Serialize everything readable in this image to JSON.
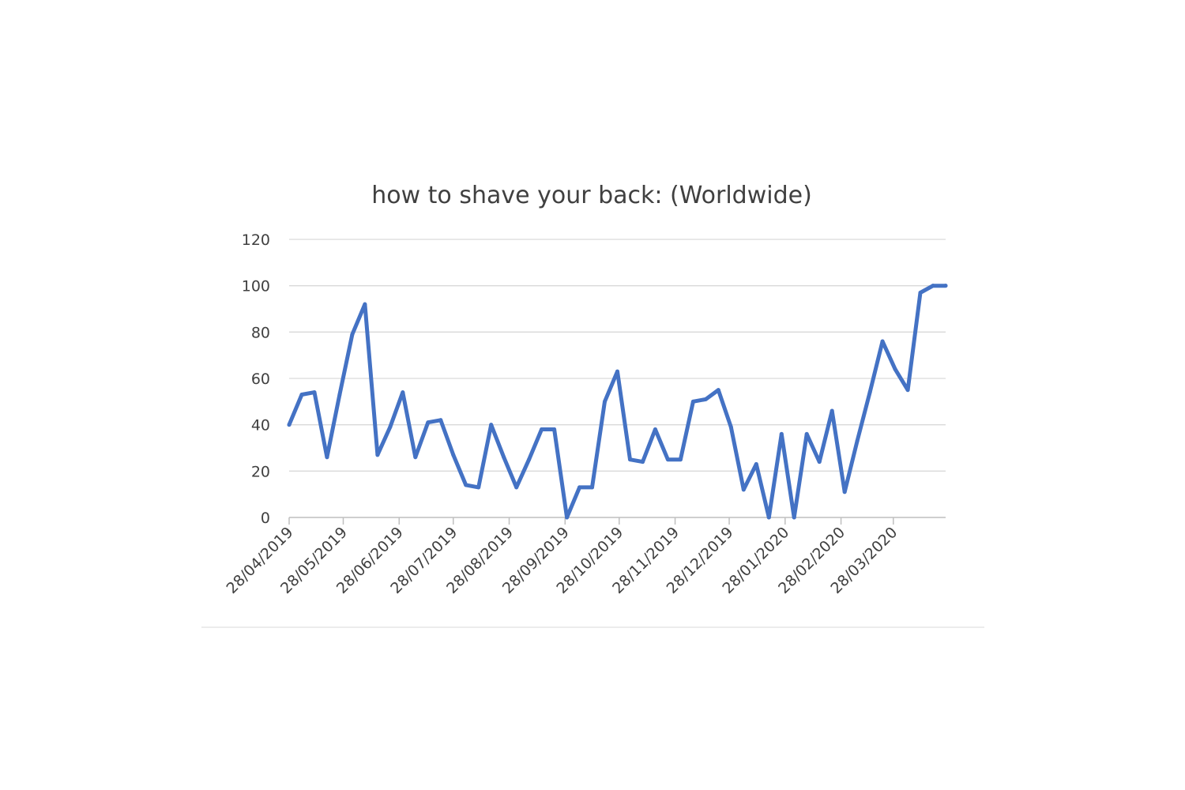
{
  "chart_data": {
    "type": "line",
    "title": "how to shave your back: (Worldwide)",
    "xlabel": "",
    "ylabel": "",
    "ylim": [
      0,
      120
    ],
    "yticks": [
      0,
      20,
      40,
      60,
      80,
      100,
      120
    ],
    "grid": true,
    "legend": "none",
    "x_tick_labels": [
      "28/04/2019",
      "28/05/2019",
      "28/06/2019",
      "28/07/2019",
      "28/08/2019",
      "28/09/2019",
      "28/10/2019",
      "28/11/2019",
      "28/12/2019",
      "28/01/2020",
      "28/02/2020",
      "28/03/2020"
    ],
    "x_range": [
      "2019-04-28",
      "2020-04-26"
    ],
    "series": [
      {
        "color": "#4472c4",
        "x": [
          "2019-04-28",
          "2019-05-05",
          "2019-05-12",
          "2019-05-19",
          "2019-05-26",
          "2019-06-02",
          "2019-06-09",
          "2019-06-16",
          "2019-06-23",
          "2019-06-30",
          "2019-07-07",
          "2019-07-14",
          "2019-07-21",
          "2019-07-28",
          "2019-08-04",
          "2019-08-11",
          "2019-08-18",
          "2019-08-25",
          "2019-09-01",
          "2019-09-08",
          "2019-09-15",
          "2019-09-22",
          "2019-09-29",
          "2019-10-06",
          "2019-10-13",
          "2019-10-20",
          "2019-10-27",
          "2019-11-03",
          "2019-11-10",
          "2019-11-17",
          "2019-11-24",
          "2019-12-01",
          "2019-12-08",
          "2019-12-15",
          "2019-12-22",
          "2019-12-29",
          "2020-01-05",
          "2020-01-12",
          "2020-01-19",
          "2020-01-26",
          "2020-02-02",
          "2020-02-09",
          "2020-02-16",
          "2020-02-23",
          "2020-03-01",
          "2020-03-08",
          "2020-03-15",
          "2020-03-22",
          "2020-03-29",
          "2020-04-05",
          "2020-04-12",
          "2020-04-19",
          "2020-04-26"
        ],
        "values": [
          40,
          53,
          54,
          26,
          53,
          79,
          92,
          27,
          39,
          54,
          26,
          41,
          42,
          27,
          14,
          13,
          40,
          26,
          13,
          25,
          38,
          38,
          0,
          13,
          13,
          50,
          63,
          25,
          24,
          38,
          25,
          25,
          50,
          51,
          55,
          39,
          12,
          23,
          0,
          36,
          0,
          36,
          24,
          46,
          11,
          33,
          54,
          76,
          64,
          55,
          97,
          100,
          100
        ]
      }
    ]
  }
}
